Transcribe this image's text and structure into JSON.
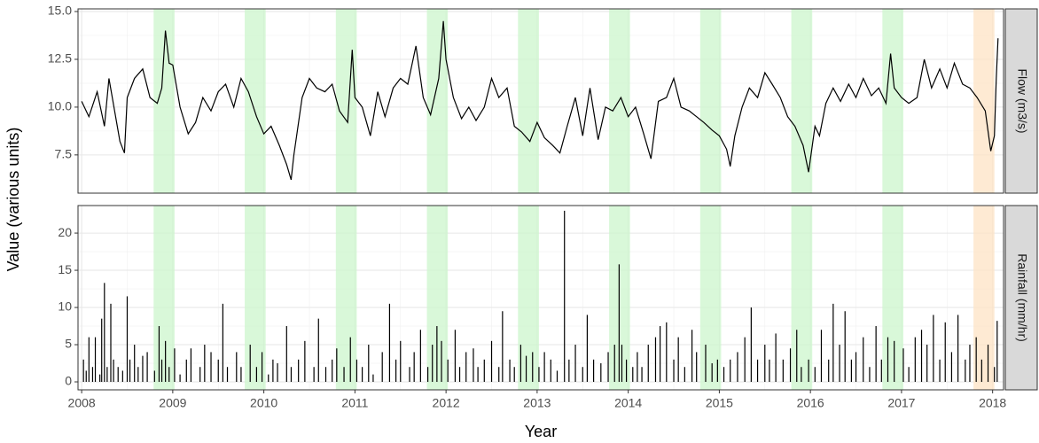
{
  "axis_labels": {
    "x": "Year",
    "y": "Value (various units)"
  },
  "chart_data": [
    {
      "type": "line",
      "strip_label": "Flow (m3/s)",
      "color": "#000000",
      "grid": true,
      "xlim": [
        2007.96,
        2018.12
      ],
      "xticks": [
        2008,
        2009,
        2010,
        2011,
        2012,
        2013,
        2014,
        2015,
        2016,
        2017,
        2018
      ],
      "ylim": [
        5.5,
        15.14
      ],
      "yticks": [
        7.5,
        {
          "value": 10,
          "label": "10.0"
        },
        12.5,
        {
          "value": 15,
          "label": "15.0"
        }
      ],
      "highlights": [
        {
          "start": 2008.79,
          "end": 2009.02,
          "color": "#ccf5cc"
        },
        {
          "start": 2009.79,
          "end": 2010.02,
          "color": "#ccf5cc"
        },
        {
          "start": 2010.79,
          "end": 2011.02,
          "color": "#ccf5cc"
        },
        {
          "start": 2011.79,
          "end": 2012.02,
          "color": "#ccf5cc"
        },
        {
          "start": 2012.79,
          "end": 2013.02,
          "color": "#ccf5cc"
        },
        {
          "start": 2013.79,
          "end": 2014.02,
          "color": "#ccf5cc"
        },
        {
          "start": 2014.79,
          "end": 2015.02,
          "color": "#ccf5cc"
        },
        {
          "start": 2015.79,
          "end": 2016.02,
          "color": "#ccf5cc"
        },
        {
          "start": 2016.79,
          "end": 2017.02,
          "color": "#ccf5cc"
        },
        {
          "start": 2017.79,
          "end": 2018.02,
          "color": "#fde3c4"
        }
      ],
      "x": [
        2008.0,
        2008.08,
        2008.17,
        2008.25,
        2008.3,
        2008.42,
        2008.47,
        2008.5,
        2008.58,
        2008.67,
        2008.75,
        2008.83,
        2008.88,
        2008.92,
        2008.96,
        2009.0,
        2009.08,
        2009.17,
        2009.25,
        2009.33,
        2009.42,
        2009.5,
        2009.58,
        2009.67,
        2009.75,
        2009.83,
        2009.92,
        2010.0,
        2010.08,
        2010.17,
        2010.25,
        2010.3,
        2010.33,
        2010.42,
        2010.5,
        2010.58,
        2010.67,
        2010.75,
        2010.83,
        2010.92,
        2010.97,
        2011.0,
        2011.08,
        2011.17,
        2011.25,
        2011.33,
        2011.42,
        2011.5,
        2011.58,
        2011.67,
        2011.75,
        2011.83,
        2011.92,
        2011.97,
        2012.0,
        2012.08,
        2012.17,
        2012.25,
        2012.33,
        2012.42,
        2012.5,
        2012.58,
        2012.67,
        2012.75,
        2012.83,
        2012.92,
        2013.0,
        2013.08,
        2013.17,
        2013.25,
        2013.33,
        2013.42,
        2013.5,
        2013.58,
        2013.67,
        2013.75,
        2013.83,
        2013.92,
        2014.0,
        2014.08,
        2014.17,
        2014.25,
        2014.33,
        2014.42,
        2014.5,
        2014.58,
        2014.67,
        2014.75,
        2014.83,
        2014.92,
        2015.0,
        2015.08,
        2015.12,
        2015.17,
        2015.25,
        2015.33,
        2015.42,
        2015.5,
        2015.58,
        2015.67,
        2015.75,
        2015.83,
        2015.92,
        2015.98,
        2016.05,
        2016.1,
        2016.17,
        2016.25,
        2016.33,
        2016.42,
        2016.5,
        2016.58,
        2016.67,
        2016.75,
        2016.83,
        2016.88,
        2016.92,
        2017.0,
        2017.08,
        2017.17,
        2017.25,
        2017.33,
        2017.42,
        2017.5,
        2017.58,
        2017.67,
        2017.75,
        2017.83,
        2017.92,
        2017.98,
        2018.02,
        2018.04,
        2018.06
      ],
      "values": [
        10.3,
        9.5,
        10.8,
        9.0,
        11.5,
        8.2,
        7.6,
        10.5,
        11.5,
        12.0,
        10.5,
        10.2,
        11.0,
        14.0,
        12.3,
        12.2,
        10.0,
        8.6,
        9.2,
        10.5,
        9.8,
        10.8,
        11.2,
        10.0,
        11.5,
        10.8,
        9.5,
        8.6,
        9.0,
        8.0,
        7.0,
        6.2,
        7.5,
        10.5,
        11.5,
        11.0,
        10.8,
        11.2,
        9.8,
        9.2,
        13.0,
        10.5,
        10.0,
        8.5,
        10.8,
        9.5,
        11.0,
        11.5,
        11.2,
        13.2,
        10.5,
        9.6,
        11.5,
        14.5,
        12.5,
        10.5,
        9.4,
        10.0,
        9.3,
        10.0,
        11.5,
        10.5,
        11.0,
        9.0,
        8.7,
        8.2,
        9.2,
        8.4,
        8.0,
        7.6,
        9.0,
        10.5,
        8.5,
        11.0,
        8.3,
        10.0,
        9.8,
        10.5,
        9.5,
        10.0,
        8.6,
        7.3,
        10.3,
        10.5,
        11.5,
        10.0,
        9.8,
        9.5,
        9.2,
        8.8,
        8.5,
        7.8,
        6.9,
        8.5,
        10.0,
        11.0,
        10.5,
        11.8,
        11.2,
        10.5,
        9.5,
        9.0,
        8.0,
        6.6,
        9.0,
        8.5,
        10.2,
        11.0,
        10.3,
        11.2,
        10.5,
        11.5,
        10.6,
        11.0,
        10.2,
        12.8,
        11.0,
        10.5,
        10.2,
        10.5,
        12.5,
        11.0,
        12.0,
        11.0,
        12.3,
        11.2,
        11.0,
        10.5,
        9.8,
        7.7,
        8.5,
        11.5,
        13.6
      ]
    },
    {
      "type": "bar",
      "strip_label": "Rainfall (mm/hr)",
      "color": "#000000",
      "grid": true,
      "xlim": [
        2007.96,
        2018.12
      ],
      "xticks": [
        2008,
        2009,
        2010,
        2011,
        2012,
        2013,
        2014,
        2015,
        2016,
        2017,
        2018
      ],
      "ylim": [
        -1.07,
        23.7
      ],
      "yticks": [
        0,
        5,
        10,
        15,
        20
      ],
      "highlights": [
        {
          "start": 2008.79,
          "end": 2009.02,
          "color": "#ccf5cc"
        },
        {
          "start": 2009.79,
          "end": 2010.02,
          "color": "#ccf5cc"
        },
        {
          "start": 2010.79,
          "end": 2011.02,
          "color": "#ccf5cc"
        },
        {
          "start": 2011.79,
          "end": 2012.02,
          "color": "#ccf5cc"
        },
        {
          "start": 2012.79,
          "end": 2013.02,
          "color": "#ccf5cc"
        },
        {
          "start": 2013.79,
          "end": 2014.02,
          "color": "#ccf5cc"
        },
        {
          "start": 2014.79,
          "end": 2015.02,
          "color": "#ccf5cc"
        },
        {
          "start": 2015.79,
          "end": 2016.02,
          "color": "#ccf5cc"
        },
        {
          "start": 2016.79,
          "end": 2017.02,
          "color": "#ccf5cc"
        },
        {
          "start": 2017.79,
          "end": 2018.02,
          "color": "#fde3c4"
        }
      ],
      "x": [
        2008.02,
        2008.05,
        2008.08,
        2008.12,
        2008.15,
        2008.2,
        2008.22,
        2008.25,
        2008.28,
        2008.32,
        2008.35,
        2008.4,
        2008.45,
        2008.5,
        2008.53,
        2008.58,
        2008.62,
        2008.67,
        2008.72,
        2008.8,
        2008.85,
        2008.88,
        2008.92,
        2008.96,
        2009.02,
        2009.08,
        2009.15,
        2009.2,
        2009.3,
        2009.35,
        2009.42,
        2009.5,
        2009.55,
        2009.6,
        2009.7,
        2009.75,
        2009.85,
        2009.92,
        2009.98,
        2010.05,
        2010.1,
        2010.15,
        2010.25,
        2010.3,
        2010.38,
        2010.45,
        2010.55,
        2010.6,
        2010.68,
        2010.75,
        2010.8,
        2010.88,
        2010.95,
        2011.02,
        2011.08,
        2011.15,
        2011.2,
        2011.3,
        2011.38,
        2011.45,
        2011.5,
        2011.6,
        2011.65,
        2011.72,
        2011.8,
        2011.85,
        2011.9,
        2011.95,
        2012.02,
        2012.1,
        2012.15,
        2012.22,
        2012.3,
        2012.35,
        2012.42,
        2012.5,
        2012.58,
        2012.62,
        2012.7,
        2012.75,
        2012.82,
        2012.88,
        2012.95,
        2013.02,
        2013.08,
        2013.15,
        2013.22,
        2013.3,
        2013.35,
        2013.42,
        2013.5,
        2013.55,
        2013.62,
        2013.7,
        2013.78,
        2013.85,
        2013.9,
        2013.93,
        2013.98,
        2014.05,
        2014.1,
        2014.15,
        2014.22,
        2014.3,
        2014.35,
        2014.42,
        2014.5,
        2014.55,
        2014.62,
        2014.7,
        2014.75,
        2014.85,
        2014.92,
        2014.98,
        2015.05,
        2015.12,
        2015.2,
        2015.28,
        2015.35,
        2015.42,
        2015.5,
        2015.55,
        2015.62,
        2015.7,
        2015.78,
        2015.85,
        2015.9,
        2015.98,
        2016.05,
        2016.12,
        2016.2,
        2016.25,
        2016.32,
        2016.38,
        2016.45,
        2016.5,
        2016.58,
        2016.65,
        2016.72,
        2016.78,
        2016.85,
        2016.92,
        2017.02,
        2017.08,
        2017.15,
        2017.22,
        2017.28,
        2017.35,
        2017.42,
        2017.48,
        2017.55,
        2017.62,
        2017.7,
        2017.75,
        2017.82,
        2017.88,
        2017.95,
        2018.02,
        2018.05
      ],
      "values": [
        3,
        1.5,
        6,
        2,
        6,
        1,
        8.5,
        13.3,
        2,
        10.5,
        3,
        2,
        1.5,
        11.5,
        3,
        5,
        2,
        3.5,
        4,
        1.5,
        7.5,
        3,
        5.5,
        2,
        4.5,
        1,
        3,
        4.5,
        2,
        5,
        4,
        3,
        10.5,
        2,
        4,
        2,
        5,
        2,
        4,
        1,
        3,
        2.5,
        7.5,
        2,
        3,
        5.5,
        2,
        8.5,
        2,
        3,
        4.5,
        2,
        6,
        3,
        2,
        5,
        1,
        4,
        10.5,
        3,
        5.5,
        2,
        4,
        7,
        2,
        5,
        7.5,
        5.5,
        3,
        7,
        2,
        4,
        4.5,
        2,
        3,
        5.5,
        2,
        9.5,
        3,
        2,
        5,
        3.5,
        4,
        2,
        4,
        3,
        1.5,
        23,
        3,
        5,
        2,
        9,
        3,
        2.5,
        4,
        5,
        15.8,
        5,
        3,
        2,
        4,
        2,
        5,
        6,
        7.5,
        8,
        3,
        6,
        2,
        7,
        4,
        5,
        2.5,
        3,
        2,
        3,
        4,
        6,
        10,
        3,
        5,
        3,
        6.5,
        3,
        4.5,
        7,
        2,
        3,
        2,
        7,
        3,
        10.5,
        5,
        9.5,
        3,
        4,
        6,
        2,
        7.5,
        3,
        6,
        5.5,
        4.5,
        2,
        6,
        7,
        5,
        9,
        3,
        8,
        4,
        9,
        3,
        5,
        6,
        3,
        5,
        2,
        8.2
      ]
    }
  ]
}
